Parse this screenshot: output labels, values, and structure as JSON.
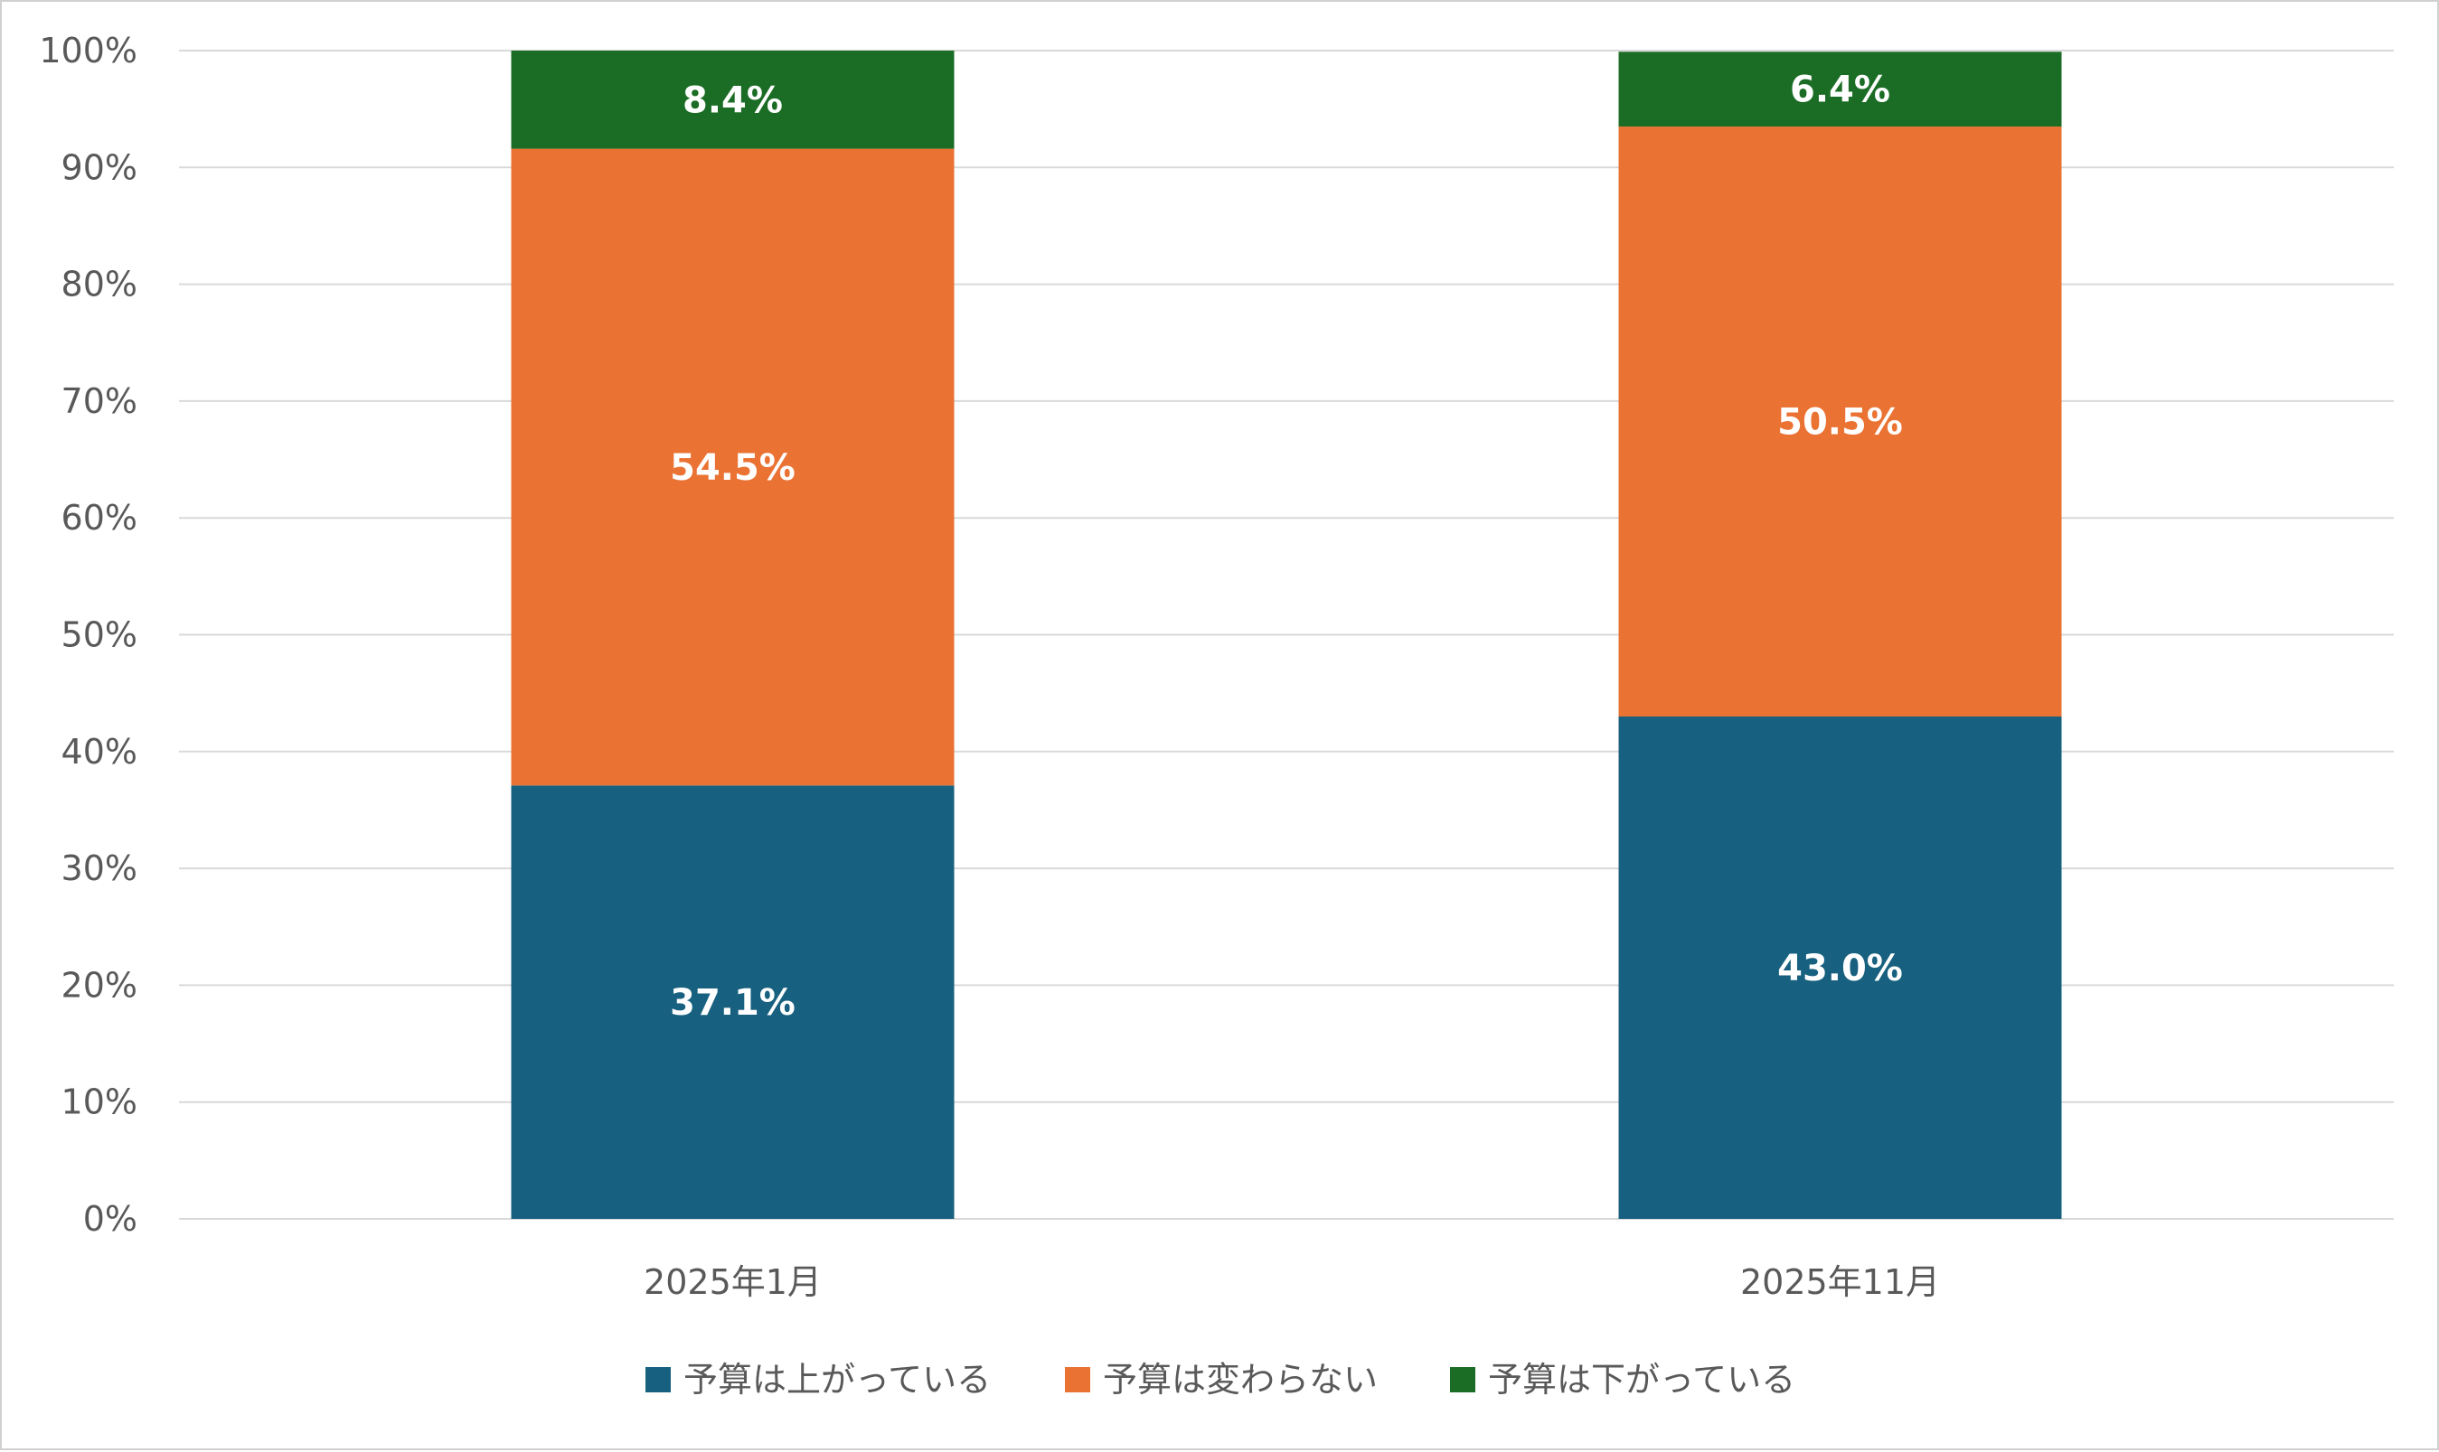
{
  "chart_data": {
    "type": "bar",
    "stacked": true,
    "categories": [
      "2025年1月",
      "2025年11月"
    ],
    "series": [
      {
        "name": "予算は上がっている",
        "color": "#17607f",
        "values": [
          37.1,
          43.0
        ],
        "labels": [
          "37.1%",
          "43.0%"
        ]
      },
      {
        "name": "予算は変わらない",
        "color": "#ea7233",
        "values": [
          54.5,
          50.5
        ],
        "labels": [
          "54.5%",
          "50.5%"
        ]
      },
      {
        "name": "予算は下がっている",
        "color": "#1b6d25",
        "values": [
          8.4,
          6.4
        ],
        "labels": [
          "8.4%",
          "6.4%"
        ]
      }
    ],
    "ylim": [
      0,
      100
    ],
    "yticks": [
      "0%",
      "10%",
      "20%",
      "30%",
      "40%",
      "50%",
      "60%",
      "70%",
      "80%",
      "90%",
      "100%"
    ],
    "grid": true,
    "legend": "bottom",
    "title": "",
    "xlabel": "",
    "ylabel": ""
  }
}
